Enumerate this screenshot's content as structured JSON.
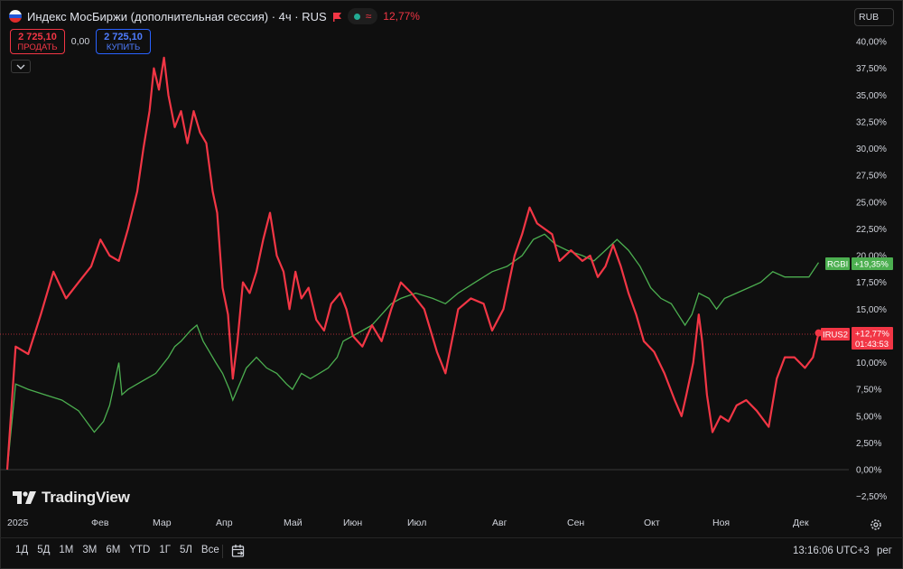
{
  "header": {
    "symbol_title": "Индекс МосБиржи (дополнительная сессия) · 4ч · RUS",
    "status_symbol": "≈",
    "change_percent": "12,77%",
    "currency": "RUB"
  },
  "trade": {
    "sell_price": "2 725,10",
    "sell_label": "ПРОДАТЬ",
    "spread": "0,00",
    "buy_price": "2 725,10",
    "buy_label": "КУПИТЬ"
  },
  "price_axis": {
    "ticks": [
      "40,00%",
      "37,50%",
      "35,00%",
      "32,50%",
      "30,00%",
      "27,50%",
      "25,00%",
      "22,50%",
      "20,00%",
      "17,50%",
      "15,00%",
      "12,50%",
      "10,00%",
      "7,50%",
      "5,00%",
      "2,50%",
      "0,00%",
      "−2,50%"
    ]
  },
  "time_axis": {
    "ticks": [
      "2025",
      "Фев",
      "Мар",
      "Апр",
      "Май",
      "Июн",
      "Июл",
      "Авг",
      "Сен",
      "Окт",
      "Ноя",
      "Дек"
    ]
  },
  "tags": {
    "rgbi_name": "RGBI",
    "rgbi_value": "+19,35%",
    "irus_name": "IRUS2",
    "irus_value": "+12,77%",
    "irus_countdown": "01:43:53"
  },
  "colors": {
    "irus": "#f23645",
    "rgbi": "#4caf50",
    "background": "#0f0f0f"
  },
  "logo": {
    "text": "TradingView"
  },
  "toolbar": {
    "ranges": [
      "1Д",
      "5Д",
      "1М",
      "3М",
      "6М",
      "YTD",
      "1Г",
      "5Л",
      "Все"
    ],
    "time": "13:16:06 UTC+3",
    "scale": "рег"
  },
  "chart_data": {
    "type": "line",
    "y_unit": "%",
    "ylim": [
      -2.5,
      40
    ],
    "x_months": [
      "2025",
      "Фев",
      "Мар",
      "Апр",
      "Май",
      "Июн",
      "Июл",
      "Авг",
      "Сен",
      "Окт",
      "Ноя",
      "Дек"
    ],
    "series": [
      {
        "name": "IRUS2",
        "color": "#f23645",
        "points": [
          [
            0,
            0
          ],
          [
            0.1,
            11.5
          ],
          [
            0.25,
            10.8
          ],
          [
            0.4,
            14.5
          ],
          [
            0.55,
            18.5
          ],
          [
            0.7,
            16
          ],
          [
            0.85,
            17.5
          ],
          [
            1.0,
            19
          ],
          [
            1.15,
            21.5
          ],
          [
            1.3,
            20
          ],
          [
            1.45,
            19.5
          ],
          [
            1.6,
            22.5
          ],
          [
            1.75,
            26
          ],
          [
            1.85,
            30
          ],
          [
            1.95,
            33.5
          ],
          [
            2.02,
            37.5
          ],
          [
            2.1,
            35.5
          ],
          [
            2.18,
            38.5
          ],
          [
            2.25,
            35
          ],
          [
            2.35,
            32
          ],
          [
            2.45,
            33.5
          ],
          [
            2.55,
            30.5
          ],
          [
            2.65,
            33.5
          ],
          [
            2.75,
            31.5
          ],
          [
            2.85,
            30.5
          ],
          [
            2.95,
            26
          ],
          [
            3.02,
            24
          ],
          [
            3.1,
            17
          ],
          [
            3.18,
            14.5
          ],
          [
            3.25,
            8.5
          ],
          [
            3.32,
            12
          ],
          [
            3.4,
            17.5
          ],
          [
            3.5,
            16.5
          ],
          [
            3.6,
            18.5
          ],
          [
            3.7,
            21.5
          ],
          [
            3.8,
            24
          ],
          [
            3.9,
            20
          ],
          [
            4.0,
            18.5
          ],
          [
            4.1,
            15
          ],
          [
            4.2,
            18.5
          ],
          [
            4.3,
            16
          ],
          [
            4.42,
            17
          ],
          [
            4.55,
            14
          ],
          [
            4.68,
            13
          ],
          [
            4.8,
            15.5
          ],
          [
            4.95,
            16.5
          ],
          [
            5.05,
            15
          ],
          [
            5.15,
            12.5
          ],
          [
            5.3,
            11.5
          ],
          [
            5.45,
            13.5
          ],
          [
            5.6,
            12
          ],
          [
            5.75,
            15
          ],
          [
            5.9,
            17.5
          ],
          [
            6.05,
            16.5
          ],
          [
            6.2,
            15
          ],
          [
            6.35,
            11
          ],
          [
            6.45,
            9
          ],
          [
            6.6,
            15
          ],
          [
            6.75,
            16
          ],
          [
            6.9,
            15.5
          ],
          [
            7.0,
            13
          ],
          [
            7.15,
            15
          ],
          [
            7.3,
            20
          ],
          [
            7.4,
            22
          ],
          [
            7.5,
            24.5
          ],
          [
            7.6,
            23
          ],
          [
            7.7,
            22.5
          ],
          [
            7.8,
            22
          ],
          [
            7.9,
            19.5
          ],
          [
            8.05,
            20.5
          ],
          [
            8.2,
            19.5
          ],
          [
            8.3,
            20
          ],
          [
            8.4,
            18
          ],
          [
            8.5,
            19
          ],
          [
            8.6,
            21
          ],
          [
            8.7,
            19
          ],
          [
            8.8,
            16.5
          ],
          [
            8.9,
            14.5
          ],
          [
            9.0,
            12
          ],
          [
            9.15,
            11
          ],
          [
            9.3,
            9
          ],
          [
            9.45,
            6.5
          ],
          [
            9.55,
            5
          ],
          [
            9.62,
            7
          ],
          [
            9.72,
            10
          ],
          [
            9.8,
            14.5
          ],
          [
            9.85,
            12
          ],
          [
            9.92,
            7
          ],
          [
            10.0,
            3.5
          ],
          [
            10.1,
            5
          ],
          [
            10.2,
            4.5
          ],
          [
            10.3,
            6
          ],
          [
            10.42,
            6.5
          ],
          [
            10.55,
            5.5
          ],
          [
            10.7,
            4
          ],
          [
            10.8,
            8.5
          ],
          [
            10.9,
            10.5
          ],
          [
            11.02,
            10.5
          ],
          [
            11.15,
            9.5
          ],
          [
            11.25,
            10.5
          ],
          [
            11.32,
            12.77
          ]
        ]
      },
      {
        "name": "RGBI",
        "color": "#4caf50",
        "points": [
          [
            0,
            0
          ],
          [
            0.1,
            8
          ],
          [
            0.25,
            7.5
          ],
          [
            0.45,
            7
          ],
          [
            0.65,
            6.5
          ],
          [
            0.85,
            5.5
          ],
          [
            1.05,
            3.5
          ],
          [
            1.2,
            4.5
          ],
          [
            1.3,
            6
          ],
          [
            1.45,
            10
          ],
          [
            1.5,
            7
          ],
          [
            1.6,
            7.5
          ],
          [
            1.75,
            8
          ],
          [
            1.9,
            8.5
          ],
          [
            2.05,
            9
          ],
          [
            2.25,
            10.5
          ],
          [
            2.35,
            11.5
          ],
          [
            2.45,
            12
          ],
          [
            2.6,
            13
          ],
          [
            2.7,
            13.5
          ],
          [
            2.8,
            12
          ],
          [
            2.9,
            11
          ],
          [
            3.0,
            10
          ],
          [
            3.1,
            9
          ],
          [
            3.2,
            7.5
          ],
          [
            3.25,
            6.5
          ],
          [
            3.35,
            8
          ],
          [
            3.45,
            9.5
          ],
          [
            3.6,
            10.5
          ],
          [
            3.75,
            9.5
          ],
          [
            3.9,
            9
          ],
          [
            4.05,
            8
          ],
          [
            4.15,
            7.5
          ],
          [
            4.3,
            9
          ],
          [
            4.45,
            8.5
          ],
          [
            4.6,
            9
          ],
          [
            4.75,
            9.5
          ],
          [
            4.9,
            10.5
          ],
          [
            5.0,
            12
          ],
          [
            5.15,
            12.5
          ],
          [
            5.3,
            13
          ],
          [
            5.45,
            13.5
          ],
          [
            5.6,
            14.5
          ],
          [
            5.75,
            15.5
          ],
          [
            5.9,
            16
          ],
          [
            6.1,
            16.5
          ],
          [
            6.3,
            16
          ],
          [
            6.45,
            15.5
          ],
          [
            6.6,
            16.5
          ],
          [
            6.8,
            17.5
          ],
          [
            7.0,
            18.5
          ],
          [
            7.2,
            19
          ],
          [
            7.4,
            20
          ],
          [
            7.55,
            21.5
          ],
          [
            7.7,
            22
          ],
          [
            7.85,
            21
          ],
          [
            8.0,
            20.5
          ],
          [
            8.2,
            20
          ],
          [
            8.35,
            19.5
          ],
          [
            8.5,
            20.5
          ],
          [
            8.65,
            21.5
          ],
          [
            8.8,
            20.5
          ],
          [
            8.95,
            19
          ],
          [
            9.1,
            17
          ],
          [
            9.25,
            16
          ],
          [
            9.4,
            15.5
          ],
          [
            9.5,
            14.5
          ],
          [
            9.6,
            13.5
          ],
          [
            9.7,
            14.5
          ],
          [
            9.8,
            16.5
          ],
          [
            9.95,
            16
          ],
          [
            10.05,
            15
          ],
          [
            10.15,
            16
          ],
          [
            10.3,
            16.5
          ],
          [
            10.45,
            17
          ],
          [
            10.6,
            17.5
          ],
          [
            10.75,
            18.5
          ],
          [
            10.9,
            18
          ],
          [
            11.05,
            18
          ],
          [
            11.2,
            18
          ],
          [
            11.32,
            19.35
          ]
        ]
      }
    ]
  }
}
